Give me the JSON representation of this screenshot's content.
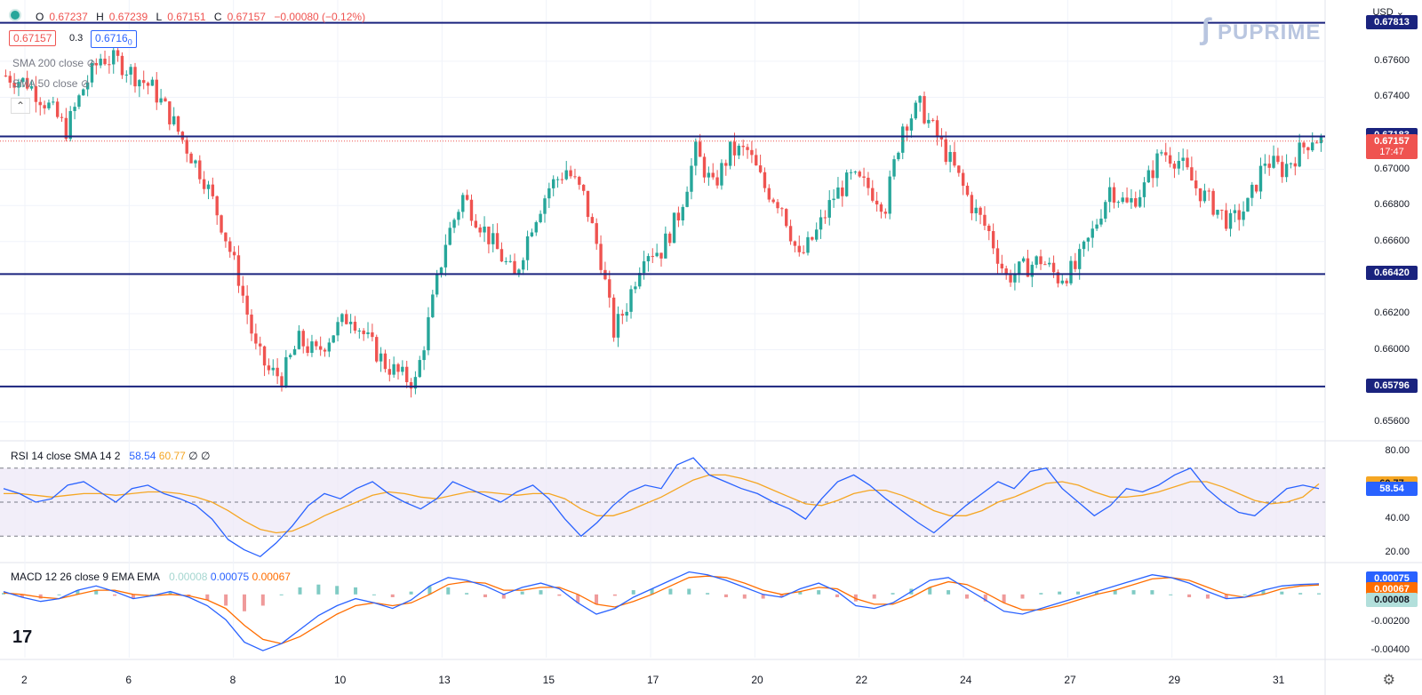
{
  "header": {
    "open_label": "O",
    "open": "0.67237",
    "high_label": "H",
    "high": "0.67239",
    "low_label": "L",
    "low": "0.67151",
    "close_label": "C",
    "close": "0.67157",
    "change": "−0.00080 (−0.12%)",
    "bid": "0.67157",
    "spread": "0.3",
    "ask": "0.6716",
    "ask_suffix": "0",
    "currency": "USD"
  },
  "indicators": {
    "sma200": "SMA 200 close",
    "sma50": "SMA 50 close"
  },
  "logo": "PUPRIME",
  "colors": {
    "up": "#26a69a",
    "down": "#ef5350",
    "level": "#1a237e",
    "rsi": "#2962ff",
    "rsi_sma": "#f5a623",
    "macd": "#2962ff",
    "signal": "#ff6d00"
  },
  "chart_data": [
    {
      "type": "candlestick",
      "x_labels": [
        "2",
        "6",
        "8",
        "10",
        "13",
        "15",
        "17",
        "20",
        "22",
        "24",
        "27",
        "29",
        "31"
      ],
      "y_ticks": [
        "0.67600",
        "0.67400",
        "0.67000",
        "0.66800",
        "0.66600",
        "0.66200",
        "0.66000",
        "0.65600"
      ],
      "ylim": [
        0.655,
        0.679
      ],
      "levels": [
        {
          "label": "0.67813",
          "value": 0.67813
        },
        {
          "label": "0.67183",
          "value": 0.67183
        },
        {
          "label": "0.66420",
          "value": 0.6642
        },
        {
          "label": "0.65796",
          "value": 0.65796
        }
      ],
      "last_price": {
        "label": "0.67157",
        "value": 0.67157,
        "countdown": "17:47"
      },
      "path": [
        [
          0,
          0.6752
        ],
        [
          5,
          0.6748
        ],
        [
          10,
          0.6735
        ],
        [
          14,
          0.6722
        ],
        [
          18,
          0.6745
        ],
        [
          22,
          0.6762
        ],
        [
          26,
          0.676
        ],
        [
          30,
          0.6752
        ],
        [
          34,
          0.6745
        ],
        [
          38,
          0.673
        ],
        [
          42,
          0.6712
        ],
        [
          46,
          0.6695
        ],
        [
          50,
          0.667
        ],
        [
          54,
          0.664
        ],
        [
          58,
          0.66
        ],
        [
          61,
          0.6588
        ],
        [
          64,
          0.6585
        ],
        [
          68,
          0.6605
        ],
        [
          72,
          0.6598
        ],
        [
          76,
          0.661
        ],
        [
          80,
          0.662
        ],
        [
          84,
          0.6605
        ],
        [
          88,
          0.6592
        ],
        [
          92,
          0.6585
        ],
        [
          95,
          0.6582
        ],
        [
          98,
          0.6615
        ],
        [
          102,
          0.666
        ],
        [
          106,
          0.6685
        ],
        [
          110,
          0.667
        ],
        [
          114,
          0.6655
        ],
        [
          118,
          0.664
        ],
        [
          122,
          0.667
        ],
        [
          126,
          0.669
        ],
        [
          130,
          0.67
        ],
        [
          134,
          0.6685
        ],
        [
          138,
          0.665
        ],
        [
          141,
          0.661
        ],
        [
          144,
          0.6625
        ],
        [
          148,
          0.6655
        ],
        [
          152,
          0.6655
        ],
        [
          156,
          0.6675
        ],
        [
          160,
          0.671
        ],
        [
          164,
          0.669
        ],
        [
          168,
          0.671
        ],
        [
          172,
          0.671
        ],
        [
          176,
          0.669
        ],
        [
          180,
          0.668
        ],
        [
          184,
          0.665
        ],
        [
          188,
          0.6665
        ],
        [
          192,
          0.6685
        ],
        [
          196,
          0.6695
        ],
        [
          200,
          0.669
        ],
        [
          204,
          0.668
        ],
        [
          208,
          0.6725
        ],
        [
          212,
          0.6735
        ],
        [
          216,
          0.6718
        ],
        [
          220,
          0.67
        ],
        [
          224,
          0.668
        ],
        [
          228,
          0.6665
        ],
        [
          232,
          0.664
        ],
        [
          236,
          0.6645
        ],
        [
          240,
          0.665
        ],
        [
          244,
          0.664
        ],
        [
          248,
          0.6645
        ],
        [
          252,
          0.6665
        ],
        [
          256,
          0.669
        ],
        [
          260,
          0.668
        ],
        [
          264,
          0.669
        ],
        [
          268,
          0.671
        ],
        [
          272,
          0.6705
        ],
        [
          276,
          0.669
        ],
        [
          280,
          0.668
        ],
        [
          284,
          0.667
        ],
        [
          288,
          0.668
        ],
        [
          292,
          0.6705
        ],
        [
          296,
          0.67
        ],
        [
          300,
          0.671
        ],
        [
          303,
          0.6718
        ],
        [
          305,
          0.6716
        ]
      ]
    },
    {
      "type": "line",
      "title": "RSI 14 close SMA 14 2",
      "values_shown": {
        "rsi": "58.54",
        "sma": "60.77",
        "a": "∅",
        "b": "∅"
      },
      "y_ticks": [
        "80.00",
        "40.00",
        "20.00"
      ],
      "ylim": [
        15,
        85
      ],
      "bands": [
        70,
        50,
        30
      ],
      "rsi": [
        58,
        55,
        50,
        52,
        60,
        62,
        56,
        50,
        58,
        60,
        55,
        52,
        48,
        40,
        28,
        22,
        18,
        26,
        36,
        48,
        55,
        52,
        58,
        62,
        55,
        50,
        46,
        52,
        62,
        58,
        54,
        50,
        56,
        60,
        52,
        40,
        30,
        38,
        48,
        56,
        60,
        58,
        72,
        76,
        66,
        62,
        58,
        55,
        50,
        46,
        40,
        52,
        62,
        66,
        60,
        52,
        45,
        38,
        32,
        40,
        48,
        55,
        62,
        58,
        68,
        70,
        58,
        50,
        42,
        48,
        58,
        56,
        60,
        66,
        70,
        58,
        50,
        44,
        42,
        50,
        58,
        60,
        58
      ],
      "sma": [
        55,
        55,
        54,
        53,
        54,
        55,
        55,
        54,
        55,
        56,
        56,
        55,
        53,
        50,
        45,
        39,
        34,
        32,
        33,
        37,
        42,
        46,
        50,
        54,
        56,
        55,
        53,
        52,
        54,
        56,
        56,
        55,
        54,
        55,
        55,
        52,
        46,
        42,
        42,
        45,
        49,
        53,
        58,
        63,
        66,
        66,
        64,
        61,
        57,
        53,
        49,
        48,
        51,
        55,
        57,
        57,
        54,
        50,
        45,
        42,
        42,
        45,
        50,
        53,
        57,
        61,
        62,
        60,
        56,
        53,
        53,
        54,
        56,
        59,
        62,
        62,
        59,
        55,
        51,
        49,
        50,
        53,
        60.77
      ]
    },
    {
      "type": "line",
      "title": "MACD 12 26 close 9 EMA EMA",
      "values_shown": {
        "hist": "0.00008",
        "macd": "0.00075",
        "signal": "0.00067"
      },
      "y_ticks": [
        "-0.00200",
        "-0.00400"
      ],
      "ylim": [
        -0.0045,
        0.0022
      ],
      "macd": [
        0.0002,
        -0.0002,
        -0.0005,
        -0.0003,
        0.0003,
        0.0006,
        0.0002,
        -0.0003,
        -0.0001,
        0.0002,
        -0.0002,
        -0.0008,
        -0.0018,
        -0.0034,
        -0.004,
        -0.0035,
        -0.0025,
        -0.0015,
        -0.0008,
        -0.0003,
        -0.0006,
        -0.001,
        -0.0004,
        0.0006,
        0.0012,
        0.001,
        0.0006,
        0.0,
        0.0005,
        0.0008,
        0.0004,
        -0.0006,
        -0.0014,
        -0.001,
        -0.0002,
        0.0004,
        0.001,
        0.0016,
        0.0014,
        0.001,
        0.0005,
        0.0,
        -0.0002,
        0.0004,
        0.0008,
        0.0002,
        -0.0008,
        -0.001,
        -0.0006,
        0.0002,
        0.001,
        0.0012,
        0.0004,
        -0.0004,
        -0.0012,
        -0.0014,
        -0.001,
        -0.0006,
        -0.0002,
        0.0002,
        0.0006,
        0.001,
        0.0014,
        0.0012,
        0.0008,
        0.0002,
        -0.0003,
        -0.0002,
        0.0003,
        0.0006,
        0.0007,
        0.00075
      ],
      "signal": [
        0.0001,
        0.0,
        -0.0002,
        -0.0003,
        0.0,
        0.0003,
        0.0003,
        0.0,
        -0.0001,
        0.0,
        -0.0001,
        -0.0004,
        -0.001,
        -0.0022,
        -0.0032,
        -0.0035,
        -0.003,
        -0.0022,
        -0.0014,
        -0.0008,
        -0.0006,
        -0.0008,
        -0.0006,
        0.0,
        0.0007,
        0.0009,
        0.0008,
        0.0003,
        0.0003,
        0.0005,
        0.0005,
        0.0,
        -0.0007,
        -0.0009,
        -0.0005,
        0.0,
        0.0006,
        0.0012,
        0.0013,
        0.0012,
        0.0008,
        0.0003,
        0.0,
        0.0002,
        0.0005,
        0.0004,
        -0.0003,
        -0.0007,
        -0.0007,
        -0.0002,
        0.0005,
        0.0009,
        0.0007,
        0.0001,
        -0.0006,
        -0.0011,
        -0.0011,
        -0.0008,
        -0.0004,
        0.0,
        0.0003,
        0.0007,
        0.0011,
        0.0012,
        0.001,
        0.0005,
        0.0,
        -0.0002,
        0.0,
        0.0004,
        0.0006,
        0.00067
      ]
    }
  ]
}
